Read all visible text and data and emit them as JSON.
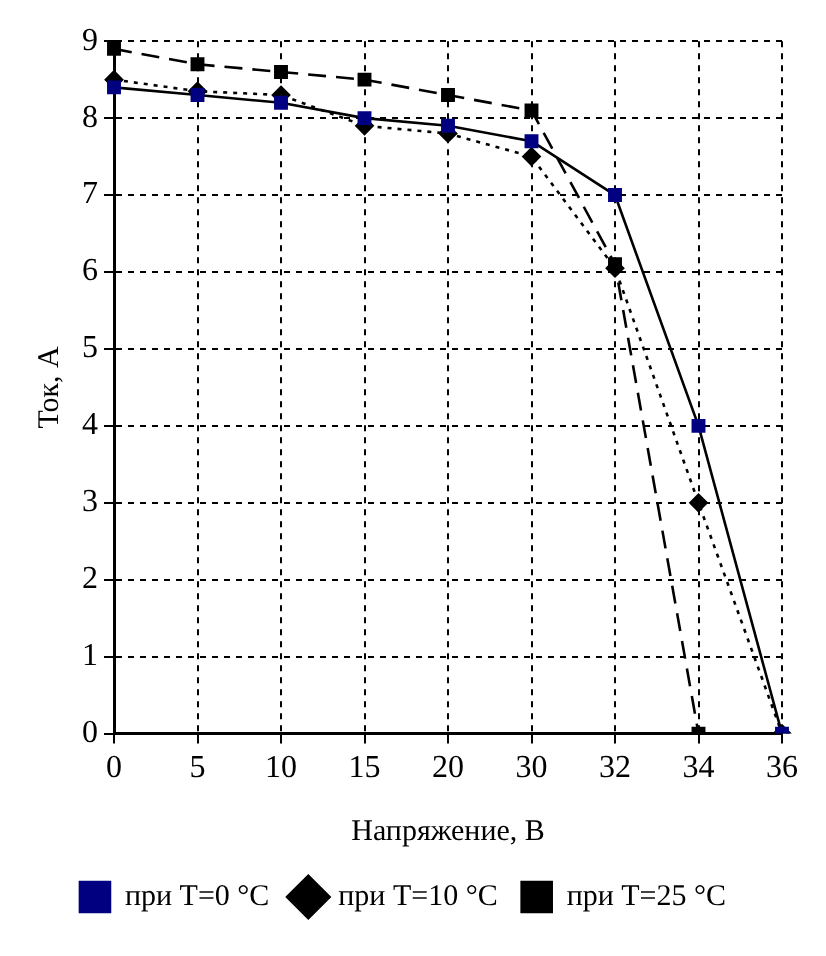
{
  "chart_data": {
    "type": "line",
    "xlabel": "Напряжение, В",
    "ylabel": "Ток, А",
    "categories": [
      "0",
      "5",
      "10",
      "15",
      "20",
      "30",
      "32",
      "34",
      "36"
    ],
    "series": [
      {
        "name": "при T=0 °C",
        "color": "#000080",
        "marker": "square",
        "line_style": "solid",
        "values": [
          8.4,
          8.3,
          8.2,
          8.0,
          7.9,
          7.7,
          7.0,
          4.0,
          0
        ]
      },
      {
        "name": "при T=10 °C",
        "color": "#000000",
        "marker": "diamond",
        "line_style": "dotted",
        "values": [
          8.5,
          8.35,
          8.3,
          7.9,
          7.8,
          7.5,
          6.05,
          3.0,
          0
        ]
      },
      {
        "name": "при T=25 °C",
        "color": "#000000",
        "marker": "square",
        "line_style": "dashed",
        "values": [
          8.9,
          8.7,
          8.6,
          8.5,
          8.3,
          8.1,
          6.1,
          0,
          null
        ]
      }
    ],
    "ylim": [
      0,
      9
    ],
    "yticks": [
      0,
      1,
      2,
      3,
      4,
      5,
      6,
      7,
      8,
      9
    ],
    "grid": true,
    "legend": "bottom"
  }
}
